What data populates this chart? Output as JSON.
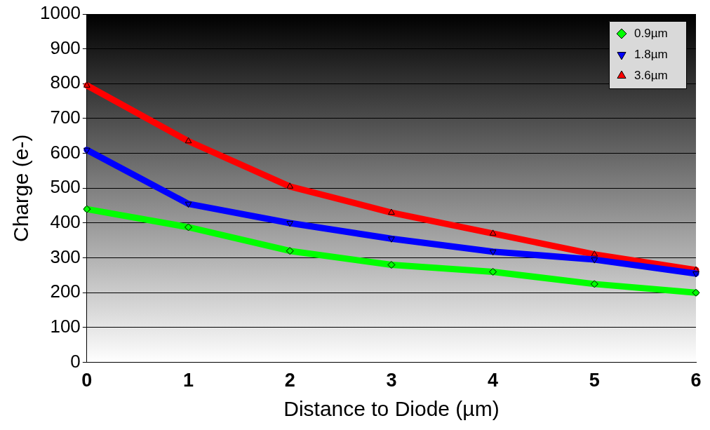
{
  "chart_data": {
    "type": "line",
    "xlabel": "Distance to Diode (µm)",
    "ylabel": "Charge (e-)",
    "x": [
      0,
      1,
      2,
      3,
      4,
      5,
      6
    ],
    "xlim": [
      0,
      6
    ],
    "xticks": [
      0,
      1,
      2,
      3,
      4,
      5,
      6
    ],
    "ylim": [
      0,
      1000
    ],
    "yticks": [
      0,
      100,
      200,
      300,
      400,
      500,
      600,
      700,
      800,
      900,
      1000
    ],
    "grid": "y",
    "legend": "top right",
    "series": [
      {
        "name": "0.9µm",
        "color": "#00ff00",
        "marker": "diamond",
        "values": [
          440,
          388,
          320,
          280,
          260,
          225,
          200
        ]
      },
      {
        "name": "1.8µm",
        "color": "#0000ff",
        "marker": "triangle",
        "values": [
          610,
          455,
          400,
          355,
          318,
          295,
          255
        ]
      },
      {
        "name": "3.6µm",
        "color": "#ff0000",
        "marker": "triangle",
        "values": [
          795,
          635,
          505,
          430,
          370,
          310,
          265
        ]
      }
    ]
  }
}
